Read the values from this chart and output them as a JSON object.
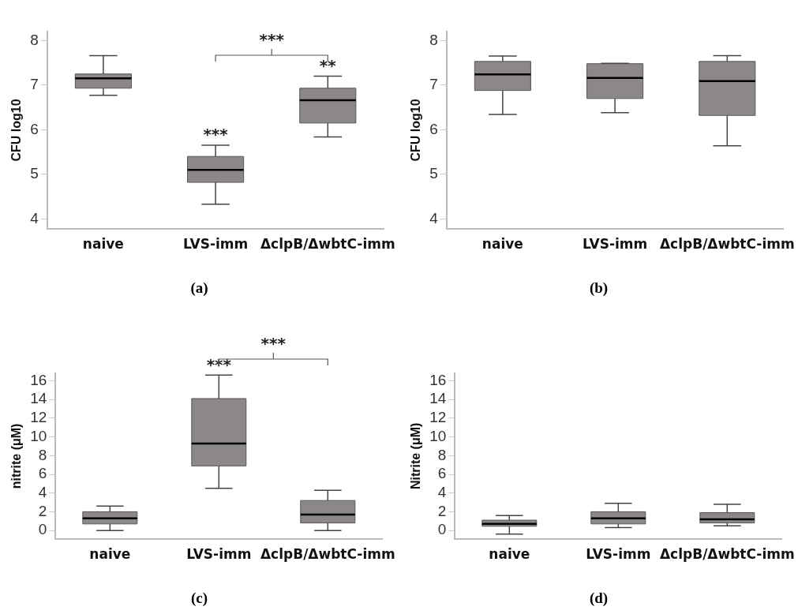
{
  "chart_data": [
    {
      "type": "box",
      "title": "(a)",
      "ylabel": "CFU log10",
      "categories": [
        "naive",
        "LVS-imm",
        "ΔclpB/ΔwbtC-imm"
      ],
      "color": "#8c8888",
      "ylim": [
        3.78,
        8.2
      ],
      "yticks": [
        4,
        5,
        6,
        7,
        8
      ],
      "grid": false,
      "boxes": [
        {
          "low": 6.77,
          "q1": 6.93,
          "median": 7.15,
          "q3": 7.25,
          "high": 7.66
        },
        {
          "low": 4.33,
          "q1": 4.82,
          "median": 5.1,
          "q3": 5.4,
          "high": 5.65
        },
        {
          "low": 5.84,
          "q1": 6.15,
          "median": 6.66,
          "q3": 6.93,
          "high": 7.2
        }
      ],
      "annotations": [
        {
          "text": "***",
          "x": "LVS-imm",
          "y": 5.65
        },
        {
          "text": "**",
          "x": "ΔclpB/ΔwbtC-imm",
          "y": 7.2
        },
        "***"
      ]
    },
    {
      "type": "box",
      "title": "(b)",
      "ylabel": "CFU log10",
      "categories": [
        "naive",
        "LVS-imm",
        "ΔclpB/ΔwbtC-imm"
      ],
      "color": "#8c8888",
      "ylim": [
        3.78,
        8.2
      ],
      "yticks": [
        4,
        5,
        6,
        7,
        8
      ],
      "grid": false,
      "boxes": [
        {
          "low": 6.34,
          "q1": 6.88,
          "median": 7.24,
          "q3": 7.53,
          "high": 7.65
        },
        {
          "low": 6.38,
          "q1": 6.7,
          "median": 7.16,
          "q3": 7.48,
          "high": 7.49
        },
        {
          "low": 5.64,
          "q1": 6.32,
          "median": 7.09,
          "q3": 7.53,
          "high": 7.66
        }
      ]
    },
    {
      "type": "box",
      "title": "(c)",
      "ylabel": "nitrite (μM)",
      "categories": [
        "naive",
        "LVS-imm",
        "ΔclpB/ΔwbtC-imm"
      ],
      "color": "#8c8888",
      "ylim": [
        -0.9,
        16.8
      ],
      "yticks": [
        0,
        2,
        4,
        6,
        8,
        10,
        12,
        14,
        16
      ],
      "grid": false,
      "boxes": [
        {
          "low": 0,
          "q1": 0.7,
          "median": 1.3,
          "q3": 2,
          "high": 2.6
        },
        {
          "low": 4.5,
          "q1": 6.9,
          "median": 9.3,
          "q3": 14.1,
          "high": 16.6
        },
        {
          "low": 0,
          "q1": 0.8,
          "median": 1.7,
          "q3": 3.2,
          "high": 4.3
        }
      ],
      "annotations": [
        {
          "text": "***",
          "x": "LVS-imm",
          "y": 16.6
        },
        "***"
      ]
    },
    {
      "type": "box",
      "title": "(d)",
      "ylabel": "Nitrite (μM)",
      "categories": [
        "naive",
        "LVS-imm",
        "ΔclpB/ΔwbtC-imm"
      ],
      "color": "#8c8888",
      "ylim": [
        -0.9,
        16.8
      ],
      "yticks": [
        0,
        2,
        4,
        6,
        8,
        10,
        12,
        14,
        16
      ],
      "grid": false,
      "boxes": [
        {
          "low": -0.4,
          "q1": 0.45,
          "median": 0.7,
          "q3": 1.1,
          "high": 1.6
        },
        {
          "low": 0.3,
          "q1": 0.7,
          "median": 1.3,
          "q3": 2,
          "high": 2.9
        },
        {
          "low": 0.5,
          "q1": 0.8,
          "median": 1.2,
          "q3": 1.9,
          "high": 2.8
        }
      ]
    }
  ]
}
